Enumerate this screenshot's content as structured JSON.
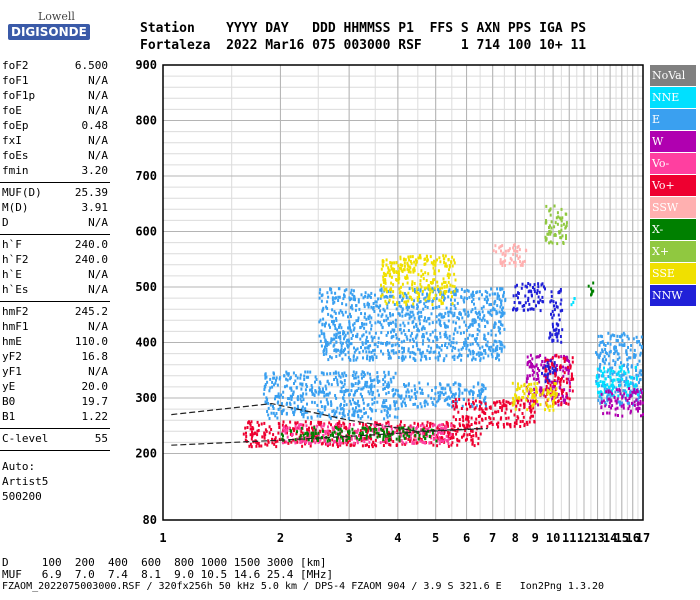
{
  "logo": {
    "line1": "Lowell",
    "line2": "DIGISONDE"
  },
  "header": {
    "row1": "Station    YYYY DAY   DDD HHMMSS P1  FFS S AXN PPS IGA PS",
    "row2": "Fortaleza  2022 Mar16 075 003000 RSF     1 714 100 10+ 11"
  },
  "params": {
    "group1": [
      {
        "k": "foF2",
        "v": "6.500"
      },
      {
        "k": "foF1",
        "v": "N/A"
      },
      {
        "k": "foF1p",
        "v": "N/A"
      },
      {
        "k": "foE",
        "v": "N/A"
      },
      {
        "k": "foEp",
        "v": "0.48"
      },
      {
        "k": "fxI",
        "v": "N/A"
      },
      {
        "k": "foEs",
        "v": "N/A"
      },
      {
        "k": "fmin",
        "v": "3.20"
      }
    ],
    "group2": [
      {
        "k": "MUF(D)",
        "v": "25.39"
      },
      {
        "k": "M(D)",
        "v": "3.91"
      },
      {
        "k": "D",
        "v": "N/A"
      }
    ],
    "group3": [
      {
        "k": "h`F",
        "v": "240.0"
      },
      {
        "k": "h`F2",
        "v": "240.0"
      },
      {
        "k": "h`E",
        "v": "N/A"
      },
      {
        "k": "h`Es",
        "v": "N/A"
      }
    ],
    "group4": [
      {
        "k": "hmF2",
        "v": "245.2"
      },
      {
        "k": "hmF1",
        "v": "N/A"
      },
      {
        "k": "hmE",
        "v": "110.0"
      },
      {
        "k": "yF2",
        "v": "16.8"
      },
      {
        "k": "yF1",
        "v": "N/A"
      },
      {
        "k": "yE",
        "v": "20.0"
      },
      {
        "k": "B0",
        "v": "19.7"
      },
      {
        "k": "B1",
        "v": "1.22"
      }
    ],
    "group5": [
      {
        "k": "C-level",
        "v": "55"
      }
    ],
    "auto": [
      "Auto:",
      "Artist5",
      "500200"
    ]
  },
  "legend": [
    {
      "label": "NoVal",
      "color": "#808080"
    },
    {
      "label": "NNE",
      "color": "#00e0ff"
    },
    {
      "label": "E",
      "color": "#3aa0f0"
    },
    {
      "label": "W",
      "color": "#b000b0"
    },
    {
      "label": "Vo-",
      "color": "#ff3fa0"
    },
    {
      "label": "Vo+",
      "color": "#ee0030"
    },
    {
      "label": "SSW",
      "color": "#ffb0b0"
    },
    {
      "label": "X-",
      "color": "#008000"
    },
    {
      "label": "X+",
      "color": "#90c840"
    },
    {
      "label": "SSE",
      "color": "#f0e000"
    },
    {
      "label": "NNW",
      "color": "#2020d8"
    }
  ],
  "axes": {
    "x_ticks": [
      "1",
      "2",
      "3",
      "4",
      "5",
      "6",
      "7",
      "8",
      "9",
      "10",
      "11",
      "12",
      "13",
      "14",
      "15",
      "16",
      "17"
    ],
    "y_ticks": [
      "80",
      "200",
      "300",
      "400",
      "500",
      "600",
      "700",
      "800",
      "900"
    ]
  },
  "footer": {
    "row1": "D     100  200  400  600  800 1000 1500 3000 [km]",
    "row2": "MUF   6.9  7.0  7.4  8.1  9.0 10.5 14.6 25.4 [MHz]",
    "row3": "FZAOM_2022075003000.RSF / 320fx256h 50 kHz 5.0 km / DPS-4 FZAOM 904 / 3.9 S 321.6 E   Ion2Png 1.3.20"
  },
  "chart_data": {
    "type": "scatter",
    "xlim": [
      1,
      17
    ],
    "ylim": [
      80,
      900
    ],
    "x_scale": "log",
    "y_scale": "custom (80 at bottom, 200-900 linear)",
    "grid": true,
    "legend_position": "right",
    "series": [
      {
        "name": "E",
        "clusters": [
          {
            "x": [
              1.8,
              4.0
            ],
            "y": [
              265,
              350
            ]
          },
          {
            "x": [
              4.0,
              6.8
            ],
            "y": [
              285,
              330
            ]
          },
          {
            "x": [
              2.5,
              7.5
            ],
            "y": [
              370,
              500
            ]
          },
          {
            "x": [
              12.8,
              16.8
            ],
            "y": [
              290,
              420
            ]
          }
        ]
      },
      {
        "name": "NNE",
        "clusters": [
          {
            "x": [
              12.8,
              16.5
            ],
            "y": [
              305,
              360
            ]
          },
          {
            "x": [
              11.0,
              11.4
            ],
            "y": [
              470,
              485
            ]
          }
        ]
      },
      {
        "name": "W",
        "clusters": [
          {
            "x": [
              8.5,
              11.0
            ],
            "y": [
              290,
              380
            ]
          },
          {
            "x": [
              13.2,
              16.9
            ],
            "y": [
              270,
              320
            ]
          }
        ]
      },
      {
        "name": "Vo+",
        "clusters": [
          {
            "x": [
              1.6,
              6.5
            ],
            "y": [
              215,
              260
            ]
          },
          {
            "x": [
              5.5,
              9.0
            ],
            "y": [
              250,
              300
            ]
          },
          {
            "x": [
              9.5,
              11.2
            ],
            "y": [
              290,
              380
            ]
          }
        ]
      },
      {
        "name": "Vo-",
        "clusters": [
          {
            "x": [
              2.0,
              5.5
            ],
            "y": [
              220,
              255
            ]
          }
        ]
      },
      {
        "name": "NNW",
        "clusters": [
          {
            "x": [
              7.8,
              9.5
            ],
            "y": [
              460,
              510
            ]
          },
          {
            "x": [
              9.3,
              10.2
            ],
            "y": [
              330,
              370
            ]
          },
          {
            "x": [
              9.7,
              10.5
            ],
            "y": [
              400,
              500
            ]
          }
        ]
      },
      {
        "name": "SSE",
        "clusters": [
          {
            "x": [
              3.6,
              5.6
            ],
            "y": [
              470,
              560
            ]
          },
          {
            "x": [
              7.8,
              10.2
            ],
            "y": [
              280,
              330
            ]
          }
        ]
      },
      {
        "name": "X-",
        "clusters": [
          {
            "x": [
              2.0,
              5.0
            ],
            "y": [
              225,
              250
            ]
          },
          {
            "x": [
              12.2,
              12.6
            ],
            "y": [
              480,
              515
            ]
          }
        ]
      },
      {
        "name": "X+",
        "clusters": [
          {
            "x": [
              9.5,
              10.8
            ],
            "y": [
              580,
              650
            ]
          }
        ]
      },
      {
        "name": "SSW",
        "clusters": [
          {
            "x": [
              7.0,
              8.5
            ],
            "y": [
              540,
              580
            ]
          }
        ]
      }
    ],
    "traces": [
      {
        "style": "dashed",
        "x": [
          1.05,
          1.9,
          3.0,
          4.5,
          6.5
        ],
        "y": [
          270,
          290,
          260,
          240,
          245
        ]
      },
      {
        "style": "dashed",
        "x": [
          1.05,
          2.0,
          3.2,
          4.8,
          6.8
        ],
        "y": [
          215,
          224,
          232,
          240,
          245
        ]
      }
    ]
  }
}
